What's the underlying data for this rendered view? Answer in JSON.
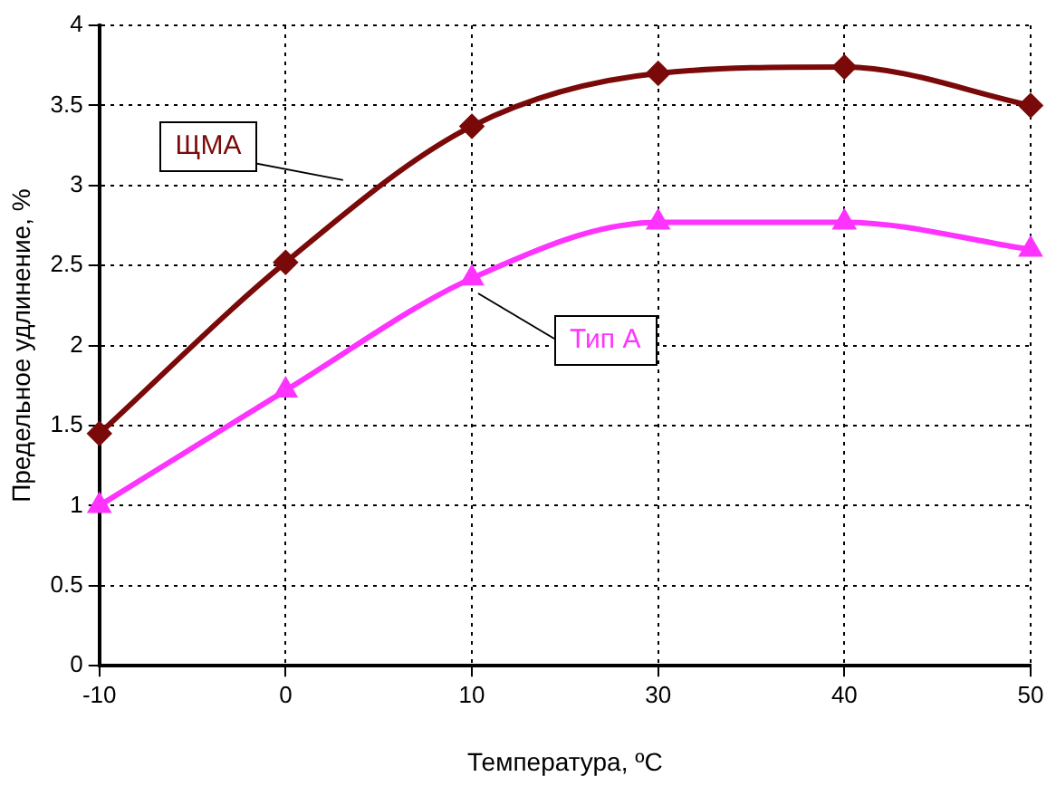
{
  "chart_data": {
    "type": "line",
    "xlabel": "Температура, ºC",
    "ylabel": "Предельное удлинение, %",
    "categories": [
      "-10",
      "0",
      "10",
      "30",
      "40",
      "50"
    ],
    "series": [
      {
        "name": "ЩМА",
        "color": "#7a0a0a",
        "marker": "diamond",
        "values": [
          1.45,
          2.52,
          3.37,
          3.7,
          3.74,
          3.5
        ]
      },
      {
        "name": "Тип А",
        "color": "#ff33ff",
        "marker": "triangle",
        "values": [
          1.0,
          1.72,
          2.42,
          2.77,
          2.77,
          2.6
        ]
      }
    ],
    "ylim": [
      0,
      4
    ],
    "yticks": [
      0,
      0.5,
      1,
      1.5,
      2,
      2.5,
      3,
      3.5,
      4
    ],
    "grid": true,
    "legend": false
  }
}
